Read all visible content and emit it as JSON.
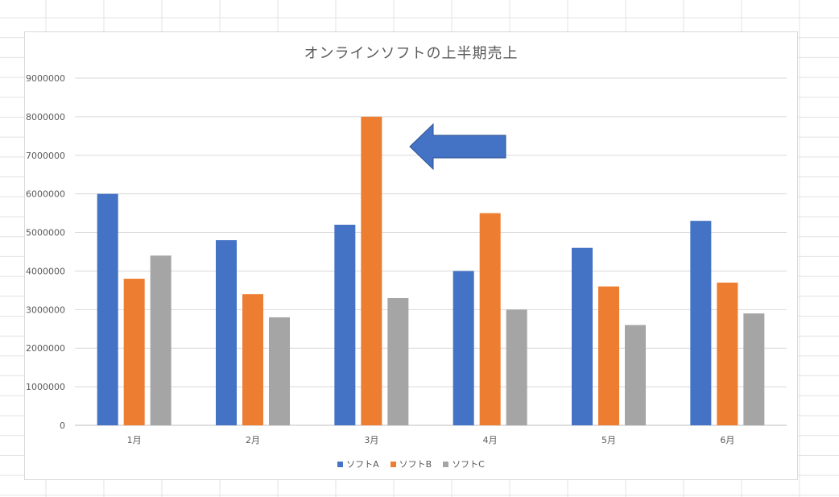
{
  "chart_data": {
    "type": "bar",
    "title": "オンラインソフトの上半期売上",
    "xlabel": "",
    "ylabel": "",
    "categories": [
      "1月",
      "2月",
      "3月",
      "4月",
      "5月",
      "6月"
    ],
    "series": [
      {
        "name": "ソフトA",
        "color": "#4472c4",
        "values": [
          6000000,
          4800000,
          5200000,
          4000000,
          4600000,
          5300000
        ]
      },
      {
        "name": "ソフトB",
        "color": "#ed7d31",
        "values": [
          3800000,
          3400000,
          8000000,
          5500000,
          3600000,
          3700000
        ]
      },
      {
        "name": "ソフトC",
        "color": "#a5a5a5",
        "values": [
          4400000,
          2800000,
          3300000,
          3000000,
          2600000,
          2900000
        ]
      }
    ],
    "ylim": [
      0,
      9000000
    ],
    "yticks": [
      "0",
      "1000000",
      "2000000",
      "3000000",
      "4000000",
      "5000000",
      "6000000",
      "7000000",
      "8000000",
      "9000000"
    ],
    "grid": true,
    "legend_position": "bottom",
    "annotation": {
      "shape": "left-arrow",
      "color": "#4472c4",
      "points_to": "3月 ソフトB"
    }
  }
}
